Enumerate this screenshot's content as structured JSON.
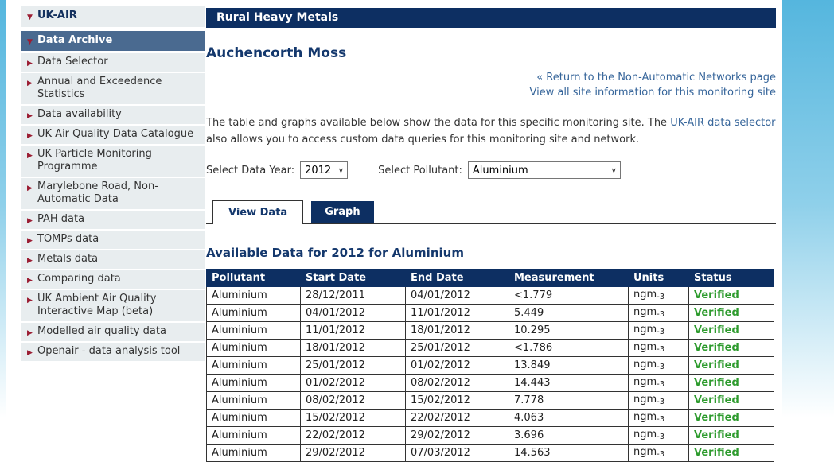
{
  "colors": {
    "navy": "#0d2f62",
    "slate_selected": "#4a6a90",
    "sidebar_bg": "#e8edef",
    "maroon_arrow": "#9b1d33",
    "link_blue": "#36659a",
    "verified_green": "#2e9b2e",
    "accent_band_top": "#55b6de"
  },
  "sidebar": {
    "root_label": "UK-AIR",
    "selected_label": "Data Archive",
    "items": [
      "Data Selector",
      "Annual and Exceedence Statistics",
      "Data availability",
      "UK Air Quality Data Catalogue",
      "UK Particle Monitoring Programme",
      "Marylebone Road, Non-Automatic Data",
      "PAH data",
      "TOMPs data",
      "Metals data",
      "Comparing data",
      "UK Ambient Air Quality Interactive Map (beta)",
      "Modelled air quality data",
      "Openair - data analysis tool"
    ]
  },
  "header": {
    "banner": "Rural Heavy Metals",
    "title": "Auchencorth Moss"
  },
  "links": {
    "return_link": "« Return to the Non-Automatic Networks page",
    "site_info_link": "View all site information for this monitoring site"
  },
  "intro": {
    "text_before": "The table and graphs available below show the data for this specific monitoring site. The ",
    "link": "UK-AIR data selector",
    "text_after": " also allows you to access custom data queries for this monitoring site and network."
  },
  "controls": {
    "year_label": "Select Data Year:",
    "year_value": "2012",
    "pollutant_label": "Select Pollutant:",
    "pollutant_value": "Aluminium"
  },
  "tabs": [
    {
      "label": "View Data",
      "active": true
    },
    {
      "label": "Graph",
      "active": false
    }
  ],
  "table": {
    "heading": "Available Data for 2012 for Aluminium",
    "columns": [
      "Pollutant",
      "Start Date",
      "End Date",
      "Measurement",
      "Units",
      "Status"
    ],
    "units_base": "ngm",
    "units_sub": "-3",
    "rows": [
      {
        "pollutant": "Aluminium",
        "start": "28/12/2011",
        "end": "04/01/2012",
        "measurement": "<1.779",
        "units": "ngm-3",
        "status": "Verified"
      },
      {
        "pollutant": "Aluminium",
        "start": "04/01/2012",
        "end": "11/01/2012",
        "measurement": "5.449",
        "units": "ngm-3",
        "status": "Verified"
      },
      {
        "pollutant": "Aluminium",
        "start": "11/01/2012",
        "end": "18/01/2012",
        "measurement": "10.295",
        "units": "ngm-3",
        "status": "Verified"
      },
      {
        "pollutant": "Aluminium",
        "start": "18/01/2012",
        "end": "25/01/2012",
        "measurement": "<1.786",
        "units": "ngm-3",
        "status": "Verified"
      },
      {
        "pollutant": "Aluminium",
        "start": "25/01/2012",
        "end": "01/02/2012",
        "measurement": "13.849",
        "units": "ngm-3",
        "status": "Verified"
      },
      {
        "pollutant": "Aluminium",
        "start": "01/02/2012",
        "end": "08/02/2012",
        "measurement": "14.443",
        "units": "ngm-3",
        "status": "Verified"
      },
      {
        "pollutant": "Aluminium",
        "start": "08/02/2012",
        "end": "15/02/2012",
        "measurement": "7.778",
        "units": "ngm-3",
        "status": "Verified"
      },
      {
        "pollutant": "Aluminium",
        "start": "15/02/2012",
        "end": "22/02/2012",
        "measurement": "4.063",
        "units": "ngm-3",
        "status": "Verified"
      },
      {
        "pollutant": "Aluminium",
        "start": "22/02/2012",
        "end": "29/02/2012",
        "measurement": "3.696",
        "units": "ngm-3",
        "status": "Verified"
      },
      {
        "pollutant": "Aluminium",
        "start": "29/02/2012",
        "end": "07/03/2012",
        "measurement": "14.563",
        "units": "ngm-3",
        "status": "Verified"
      }
    ]
  }
}
